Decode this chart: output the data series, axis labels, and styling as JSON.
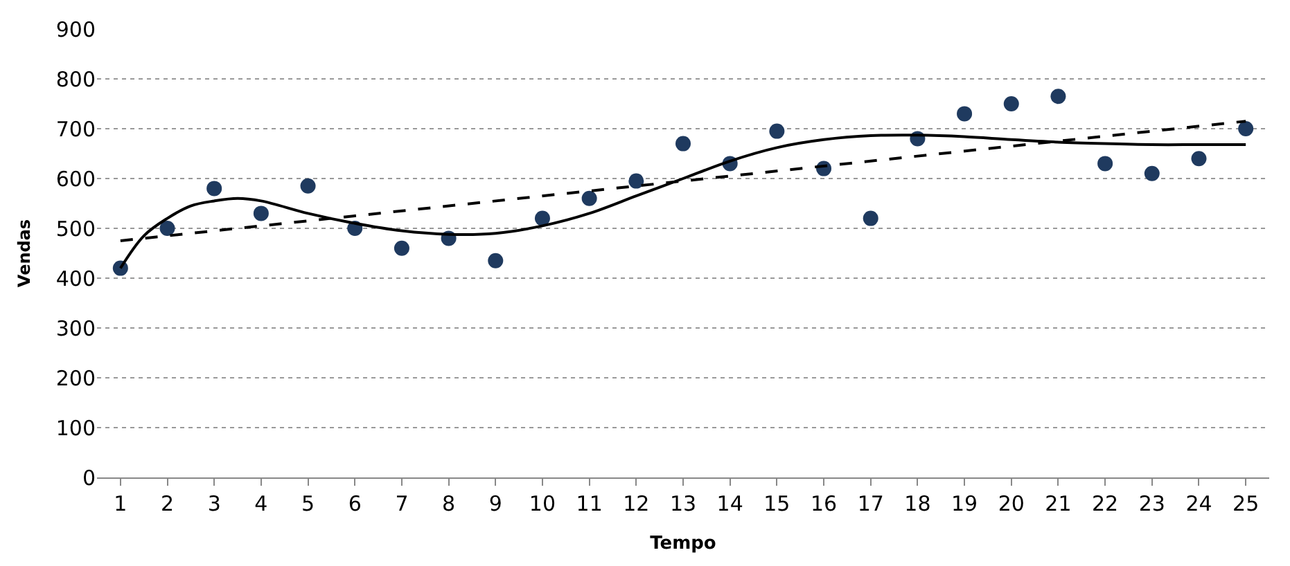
{
  "chart_data": {
    "type": "scatter",
    "xlabel": "Tempo",
    "ylabel": "Vendas",
    "x": [
      1,
      2,
      3,
      4,
      5,
      6,
      7,
      8,
      9,
      10,
      11,
      12,
      13,
      14,
      15,
      16,
      17,
      18,
      19,
      20,
      21,
      22,
      23,
      24,
      25
    ],
    "series": [
      {
        "color": "#1f3a5f",
        "marker": "circle",
        "values": [
          420,
          500,
          580,
          530,
          585,
          500,
          460,
          480,
          435,
          520,
          560,
          595,
          670,
          630,
          695,
          620,
          520,
          680,
          730,
          750,
          765,
          630,
          610,
          640,
          700
        ]
      },
      {
        "type": "line",
        "color": "#000000",
        "marker": "none",
        "line_style": "solid",
        "x": [
          1,
          1.5,
          2,
          2.5,
          3,
          3.5,
          4,
          5,
          6,
          7,
          8,
          9,
          10,
          11,
          12,
          13,
          14,
          15,
          16,
          17,
          18,
          19,
          20,
          21,
          22,
          23,
          24,
          25
        ],
        "values": [
          420,
          485,
          520,
          545,
          555,
          560,
          555,
          530,
          510,
          495,
          488,
          490,
          505,
          530,
          565,
          600,
          635,
          662,
          678,
          686,
          687,
          684,
          678,
          673,
          670,
          668,
          668,
          668
        ]
      },
      {
        "type": "line",
        "color": "#000000",
        "marker": "none",
        "line_style": "dashed",
        "x": [
          1,
          25
        ],
        "values": [
          475,
          715
        ]
      }
    ],
    "xlim": [
      0.5,
      25.5
    ],
    "xticks": [
      1,
      2,
      3,
      4,
      5,
      6,
      7,
      8,
      9,
      10,
      11,
      12,
      13,
      14,
      15,
      16,
      17,
      18,
      19,
      20,
      21,
      22,
      23,
      24,
      25
    ],
    "ylim": [
      0,
      900
    ],
    "yticks": [
      0,
      100,
      200,
      300,
      400,
      500,
      600,
      700,
      800,
      900
    ],
    "grid": "y"
  }
}
